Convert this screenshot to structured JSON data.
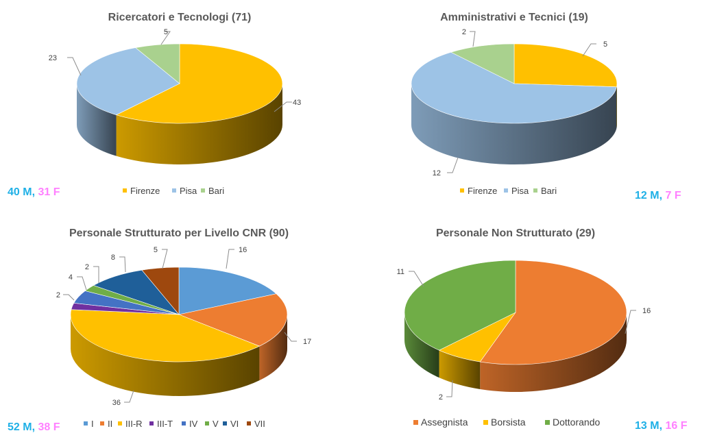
{
  "chart_data": [
    {
      "type": "pie",
      "title": "Ricercatori e Tecnologi (71)",
      "categories": [
        "Firenze",
        "Pisa",
        "Bari"
      ],
      "values": [
        43,
        23,
        5
      ],
      "colors": [
        "#ffc000",
        "#9dc3e6",
        "#a9d18e"
      ],
      "legend": "bottom",
      "three_d": true
    },
    {
      "type": "pie",
      "title": "Amministrativi e Tecnici (19)",
      "categories": [
        "Firenze",
        "Pisa",
        "Bari"
      ],
      "values": [
        5,
        12,
        2
      ],
      "colors": [
        "#ffc000",
        "#9dc3e6",
        "#a9d18e"
      ],
      "legend": "bottom",
      "three_d": true
    },
    {
      "type": "pie",
      "title": "Personale Strutturato per Livello CNR (90)",
      "categories": [
        "I",
        "II",
        "III-R",
        "III-T",
        "IV",
        "V",
        "VI",
        "VII"
      ],
      "values": [
        16,
        17,
        36,
        2,
        4,
        2,
        8,
        5
      ],
      "colors": [
        "#5b9bd5",
        "#ed7d31",
        "#ffc000",
        "#7030a0",
        "#4472c4",
        "#70ad47",
        "#1f5f99",
        "#9e480e"
      ],
      "legend": "bottom",
      "three_d": true
    },
    {
      "type": "pie",
      "title": "Personale Non Strutturato (29)",
      "categories": [
        "Assegnista",
        "Borsista",
        "Dottorando"
      ],
      "values": [
        16,
        2,
        11
      ],
      "colors": [
        "#ed7d31",
        "#ffc000",
        "#70ad47"
      ],
      "legend": "bottom",
      "three_d": true
    }
  ],
  "gender_counts": [
    {
      "male": "40 M",
      "female": "31 F"
    },
    {
      "male": "12 M",
      "female": "7 F"
    },
    {
      "male": "52 M",
      "female": "38 F"
    },
    {
      "male": "13 M",
      "female": "16 F"
    }
  ]
}
